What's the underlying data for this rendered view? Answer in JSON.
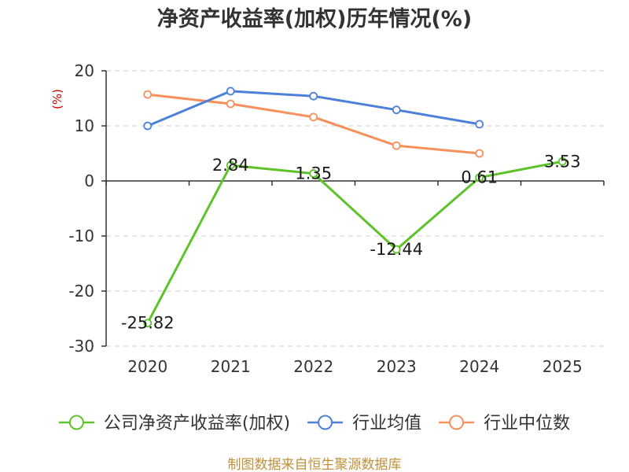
{
  "colors": {
    "title": "#333333",
    "axis": "#333333",
    "grid": "#cccccc",
    "ylabel": "#cc0000",
    "footer": "#c0913a"
  },
  "source_note": "制图数据来自恒生聚源数据库",
  "chart_data": {
    "type": "line",
    "title": "净资产收益率(加权)历年情况(%)",
    "ylabel": "(%)",
    "categories": [
      "2020",
      "2021",
      "2022",
      "2023",
      "2024",
      "2025"
    ],
    "ylim": [
      -30,
      20
    ],
    "yticks": [
      20,
      10,
      0,
      -10,
      -20,
      -30
    ],
    "grid": true,
    "legend_position": "bottom",
    "series": [
      {
        "name": "公司净资产收益率(加权)",
        "color": "#5ec22b",
        "values": [
          -25.82,
          2.84,
          1.35,
          -12.44,
          0.61,
          3.53
        ],
        "show_labels": true
      },
      {
        "name": "行业均值",
        "color": "#4d80d8",
        "values": [
          10.0,
          16.3,
          15.4,
          12.9,
          10.3,
          null
        ],
        "show_labels": false
      },
      {
        "name": "行业中位数",
        "color": "#f6915b",
        "values": [
          15.7,
          14.0,
          11.6,
          6.4,
          5.0,
          null
        ],
        "show_labels": false
      }
    ]
  }
}
